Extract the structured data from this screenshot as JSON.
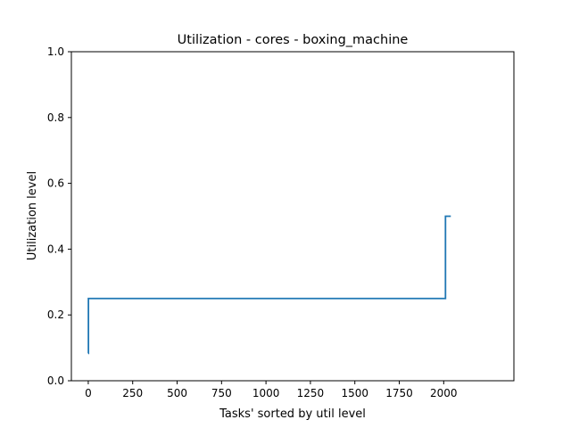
{
  "chart_data": {
    "type": "line",
    "title": "Utilization - cores - boxing_machine",
    "xlabel": "Tasks' sorted by util level",
    "ylabel": "Utilization level",
    "xlim": [
      -95,
      2395
    ],
    "ylim": [
      0,
      1.0
    ],
    "x_ticks": [
      0,
      250,
      500,
      750,
      1000,
      1250,
      1500,
      1750,
      2000
    ],
    "x_tick_labels": [
      "0",
      "250",
      "500",
      "750",
      "1000",
      "1250",
      "1500",
      "1750",
      "2000"
    ],
    "y_ticks": [
      0,
      0.2,
      0.4,
      0.6,
      0.8,
      1.0
    ],
    "y_tick_labels": [
      "0.0",
      "0.2",
      "0.4",
      "0.6",
      "0.8",
      "1.0"
    ],
    "grid": false,
    "legend": null,
    "series": [
      {
        "color": "#1f77b4",
        "x": [
          0,
          1,
          1,
          2010,
          2010,
          2040
        ],
        "y": [
          0.083,
          0.083,
          0.25,
          0.25,
          0.5,
          0.5
        ]
      }
    ]
  }
}
